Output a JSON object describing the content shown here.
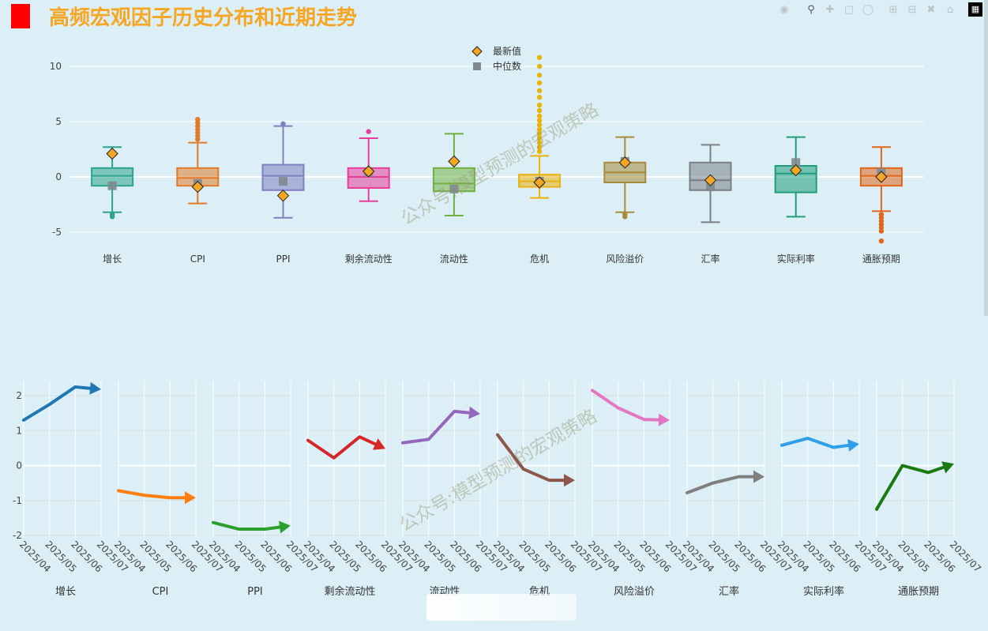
{
  "title": "高频宏观因子历史分布和近期走势",
  "watermark": "公众号:模型预测的宏观策略",
  "modebar_icons": [
    "camera-icon",
    "zoom-icon",
    "pan-icon",
    "box-select-icon",
    "lasso-icon",
    "zoom-in-icon",
    "zoom-out-icon",
    "autoscale-icon",
    "home-icon"
  ],
  "colors": {
    "background": "#dceff6",
    "title": "#f5a623",
    "title_bar": "#ff0000",
    "latest_marker": "#f5a623",
    "median_marker": "#808890"
  },
  "chart_data": [
    {
      "type": "box",
      "legend": [
        {
          "label": "最新值",
          "marker": "diamond",
          "color": "#f5a623"
        },
        {
          "label": "中位数",
          "marker": "square",
          "color": "#808890"
        }
      ],
      "legend_position": "top-center",
      "ylim": [
        -6.5,
        11.5
      ],
      "yticks": [
        10,
        5,
        0,
        -5
      ],
      "grid": true,
      "categories": [
        "增长",
        "CPI",
        "PPI",
        "剩余流动性",
        "流动性",
        "危机",
        "风险溢价",
        "汇率",
        "实际利率",
        "通胀预期"
      ],
      "boxes": [
        {
          "name": "增长",
          "color": "#2ca58d",
          "q1": -0.8,
          "median": 0.1,
          "q3": 0.8,
          "lower": -3.2,
          "upper": 2.7,
          "outliers": [
            -3.4,
            -3.6
          ],
          "latest": 2.1,
          "median_marker": -0.8
        },
        {
          "name": "CPI",
          "color": "#e07b2a",
          "q1": -0.8,
          "median": -0.1,
          "q3": 0.8,
          "lower": -2.4,
          "upper": 3.1,
          "outliers": [
            3.4,
            3.7,
            4.0,
            4.3,
            4.6,
            4.9,
            5.2
          ],
          "latest": -0.9,
          "median_marker": -0.6
        },
        {
          "name": "PPI",
          "color": "#8080c0",
          "q1": -1.2,
          "median": 0.1,
          "q3": 1.1,
          "lower": -3.7,
          "upper": 4.6,
          "outliers": [
            4.8
          ],
          "latest": -1.7,
          "median_marker": -0.4
        },
        {
          "name": "剩余流动性",
          "color": "#e83d9a",
          "q1": -1.0,
          "median": 0.0,
          "q3": 0.8,
          "lower": -2.2,
          "upper": 3.5,
          "outliers": [
            4.1
          ],
          "latest": 0.5,
          "median_marker": 0.4
        },
        {
          "name": "流动性",
          "color": "#72b043",
          "q1": -1.3,
          "median": -0.6,
          "q3": 0.8,
          "lower": -3.5,
          "upper": 3.9,
          "outliers": [],
          "latest": 1.4,
          "median_marker": -1.1
        },
        {
          "name": "危机",
          "color": "#e9b20e",
          "q1": -0.9,
          "median": -0.4,
          "q3": 0.2,
          "lower": -1.9,
          "upper": 1.9,
          "outliers": [
            2.3,
            2.7,
            3.1,
            3.5,
            3.9,
            4.3,
            4.7,
            5.1,
            5.5,
            6.0,
            6.5,
            7.2,
            7.8,
            8.5,
            9.2,
            10.0,
            10.8
          ],
          "latest": -0.5,
          "median_marker": -0.4
        },
        {
          "name": "风险溢价",
          "color": "#a88a3a",
          "q1": -0.5,
          "median": 0.4,
          "q3": 1.3,
          "lower": -3.2,
          "upper": 3.6,
          "outliers": [
            -3.4,
            -3.6
          ],
          "latest": 1.3,
          "median_marker": 1.4
        },
        {
          "name": "汇率",
          "color": "#7a7f86",
          "q1": -1.2,
          "median": -0.3,
          "q3": 1.3,
          "lower": -4.1,
          "upper": 2.9,
          "outliers": [],
          "latest": -0.3,
          "median_marker": -0.9
        },
        {
          "name": "实际利率",
          "color": "#1f9d7a",
          "q1": -1.4,
          "median": 0.3,
          "q3": 1.0,
          "lower": -3.6,
          "upper": 3.6,
          "outliers": [],
          "latest": 0.6,
          "median_marker": 1.3
        },
        {
          "name": "通胀预期",
          "color": "#e0661a",
          "q1": -0.8,
          "median": 0.1,
          "q3": 0.8,
          "lower": -3.1,
          "upper": 2.7,
          "outliers": [
            -3.4,
            -3.7,
            -4.0,
            -4.3,
            -4.6,
            -4.9,
            -5.8
          ],
          "latest": 0.0,
          "median_marker": 0.4
        }
      ]
    },
    {
      "type": "line",
      "grid": true,
      "ylim": [
        -2,
        2.5
      ],
      "yticks": [
        2,
        1,
        0,
        -1,
        -2
      ],
      "x": [
        "2025/04",
        "2025/05",
        "2025/06",
        "2025/07"
      ],
      "panels": [
        {
          "name": "增长",
          "color": "#1f77b4",
          "values": [
            1.3,
            1.75,
            2.25,
            2.18
          ]
        },
        {
          "name": "CPI",
          "color": "#ff7f0e",
          "values": [
            -0.72,
            -0.85,
            -0.92,
            -0.92
          ]
        },
        {
          "name": "PPI",
          "color": "#2ca02c",
          "values": [
            -1.63,
            -1.82,
            -1.82,
            -1.72
          ]
        },
        {
          "name": "剩余流动性",
          "color": "#d62728",
          "values": [
            0.72,
            0.22,
            0.82,
            0.48
          ]
        },
        {
          "name": "流动性",
          "color": "#9467bd",
          "values": [
            0.65,
            0.75,
            1.55,
            1.48
          ]
        },
        {
          "name": "危机",
          "color": "#8c564b",
          "values": [
            0.88,
            -0.1,
            -0.42,
            -0.42
          ]
        },
        {
          "name": "风险溢价",
          "color": "#e377c2",
          "values": [
            2.15,
            1.65,
            1.32,
            1.3
          ]
        },
        {
          "name": "汇率",
          "color": "#7f7f7f",
          "values": [
            -0.78,
            -0.5,
            -0.32,
            -0.32
          ]
        },
        {
          "name": "实际利率",
          "color": "#2e9fe8",
          "values": [
            0.58,
            0.78,
            0.52,
            0.62
          ]
        },
        {
          "name": "通胀预期",
          "color": "#1a7a12",
          "values": [
            -1.25,
            0.0,
            -0.2,
            0.05
          ]
        }
      ]
    }
  ]
}
